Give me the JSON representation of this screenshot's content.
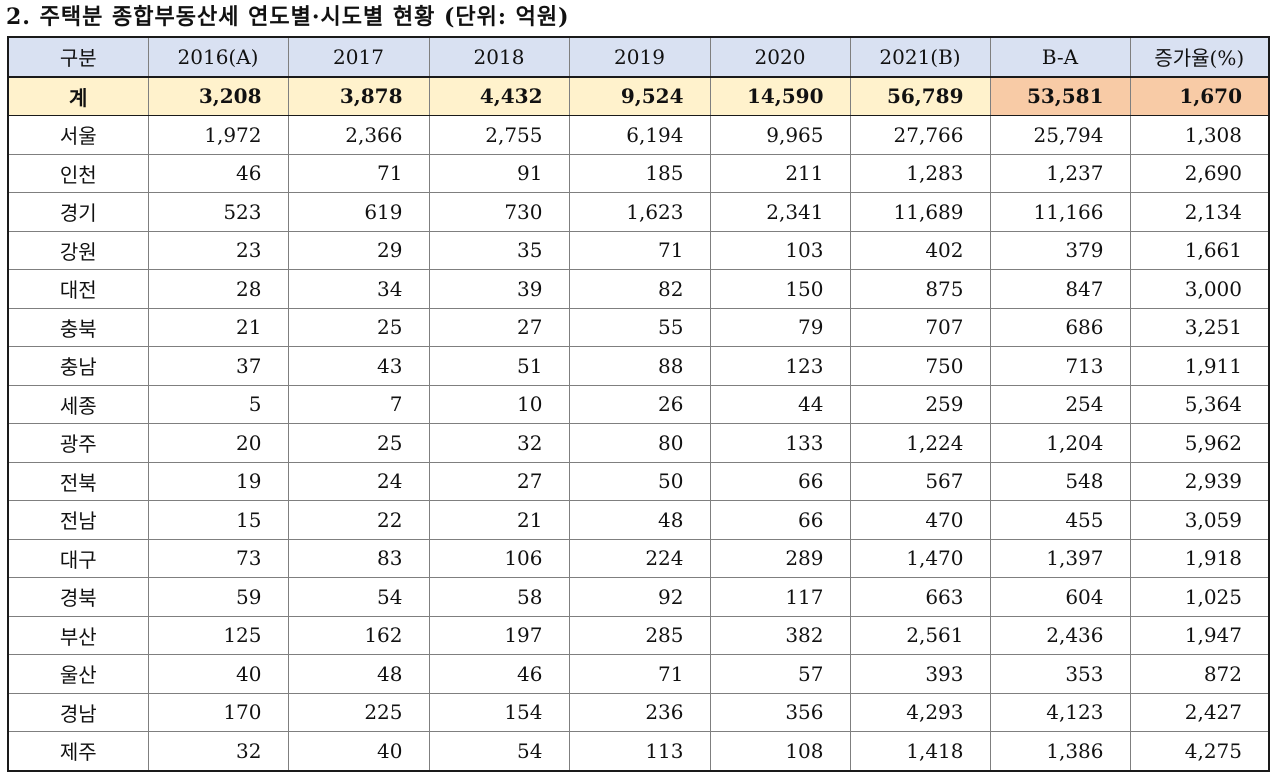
{
  "title": "2. 주택분 종합부동산세 연도별·시도별 현황 (단위: 억원)",
  "table": {
    "headers": [
      "구분",
      "2016(A)",
      "2017",
      "2018",
      "2019",
      "2020",
      "2021(B)",
      "B-A",
      "증가율(%)"
    ],
    "total": [
      "계",
      "3,208",
      "3,878",
      "4,432",
      "9,524",
      "14,590",
      "56,789",
      "53,581",
      "1,670"
    ],
    "rows": [
      [
        "서울",
        "1,972",
        "2,366",
        "2,755",
        "6,194",
        "9,965",
        "27,766",
        "25,794",
        "1,308"
      ],
      [
        "인천",
        "46",
        "71",
        "91",
        "185",
        "211",
        "1,283",
        "1,237",
        "2,690"
      ],
      [
        "경기",
        "523",
        "619",
        "730",
        "1,623",
        "2,341",
        "11,689",
        "11,166",
        "2,134"
      ],
      [
        "강원",
        "23",
        "29",
        "35",
        "71",
        "103",
        "402",
        "379",
        "1,661"
      ],
      [
        "대전",
        "28",
        "34",
        "39",
        "82",
        "150",
        "875",
        "847",
        "3,000"
      ],
      [
        "충북",
        "21",
        "25",
        "27",
        "55",
        "79",
        "707",
        "686",
        "3,251"
      ],
      [
        "충남",
        "37",
        "43",
        "51",
        "88",
        "123",
        "750",
        "713",
        "1,911"
      ],
      [
        "세종",
        "5",
        "7",
        "10",
        "26",
        "44",
        "259",
        "254",
        "5,364"
      ],
      [
        "광주",
        "20",
        "25",
        "32",
        "80",
        "133",
        "1,224",
        "1,204",
        "5,962"
      ],
      [
        "전북",
        "19",
        "24",
        "27",
        "50",
        "66",
        "567",
        "548",
        "2,939"
      ],
      [
        "전남",
        "15",
        "22",
        "21",
        "48",
        "66",
        "470",
        "455",
        "3,059"
      ],
      [
        "대구",
        "73",
        "83",
        "106",
        "224",
        "289",
        "1,470",
        "1,397",
        "1,918"
      ],
      [
        "경북",
        "59",
        "54",
        "58",
        "92",
        "117",
        "663",
        "604",
        "1,025"
      ],
      [
        "부산",
        "125",
        "162",
        "197",
        "285",
        "382",
        "2,561",
        "2,436",
        "1,947"
      ],
      [
        "울산",
        "40",
        "48",
        "46",
        "71",
        "57",
        "393",
        "353",
        "872"
      ],
      [
        "경남",
        "170",
        "225",
        "154",
        "236",
        "356",
        "4,293",
        "4,123",
        "2,427"
      ],
      [
        "제주",
        "32",
        "40",
        "54",
        "113",
        "108",
        "1,418",
        "1,386",
        "4,275"
      ]
    ]
  },
  "colors": {
    "header_bg": "#d9e1f2",
    "total_bg": "#fff2cc",
    "total_highlight_bg": "#f8cba6"
  }
}
